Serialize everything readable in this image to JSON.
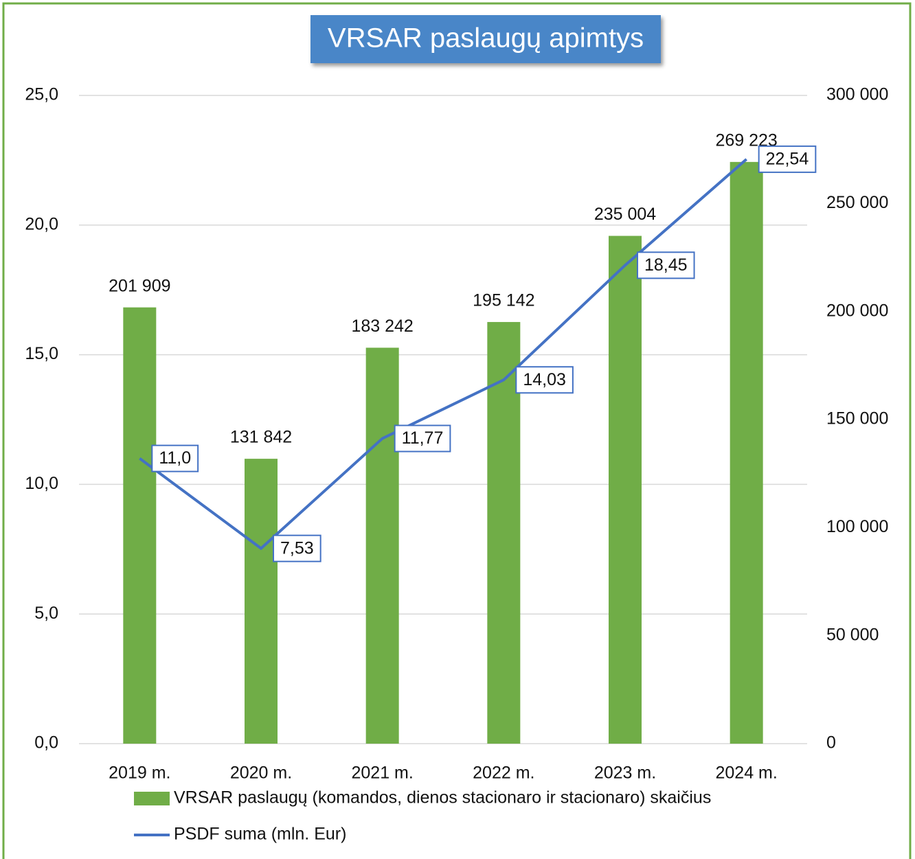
{
  "chart_data": {
    "type": "bar_line",
    "title": "VRSAR paslaugų apimtys",
    "categories": [
      "2019 m.",
      "2020 m.",
      "2021 m.",
      "2022 m.",
      "2023 m.",
      "2024 m."
    ],
    "series": [
      {
        "name": "VRSAR paslaugų (komandos, dienos stacionaro ir stacionaro) skaičius",
        "type": "bar",
        "axis": "y2",
        "color": "#70ad47",
        "values": [
          201909,
          131842,
          183242,
          195142,
          235004,
          269223
        ],
        "value_labels": [
          "201 909",
          "131 842",
          "183 242",
          "195 142",
          "235 004",
          "269 223"
        ]
      },
      {
        "name": "PSDF suma  (mln. Eur)",
        "type": "line",
        "axis": "y",
        "color": "#4472c4",
        "values": [
          11.0,
          7.53,
          11.77,
          14.03,
          18.45,
          22.54
        ],
        "value_labels": [
          "11,0",
          "7,53",
          "11,77",
          "14,03",
          "18,45",
          "22,54"
        ]
      }
    ],
    "ylim": [
      0,
      25
    ],
    "yticks": [
      {
        "value": 0,
        "label": "0,0"
      },
      {
        "value": 5,
        "label": "5,0"
      },
      {
        "value": 10,
        "label": "10,0"
      },
      {
        "value": 15,
        "label": "15,0"
      },
      {
        "value": 20,
        "label": "20,0"
      },
      {
        "value": 25,
        "label": "25,0"
      }
    ],
    "y2lim": [
      0,
      300000
    ],
    "y2ticks": [
      0,
      {
        "value": 50000,
        "label": "50 000"
      },
      {
        "value": 100000,
        "label": "100 000"
      },
      {
        "value": 150000,
        "label": "150 000"
      },
      {
        "value": 200000,
        "label": "200 000"
      },
      {
        "value": 250000,
        "label": "250 000"
      },
      {
        "value": 300000,
        "label": "300 000"
      }
    ],
    "grid": true,
    "legend": "bottom"
  }
}
